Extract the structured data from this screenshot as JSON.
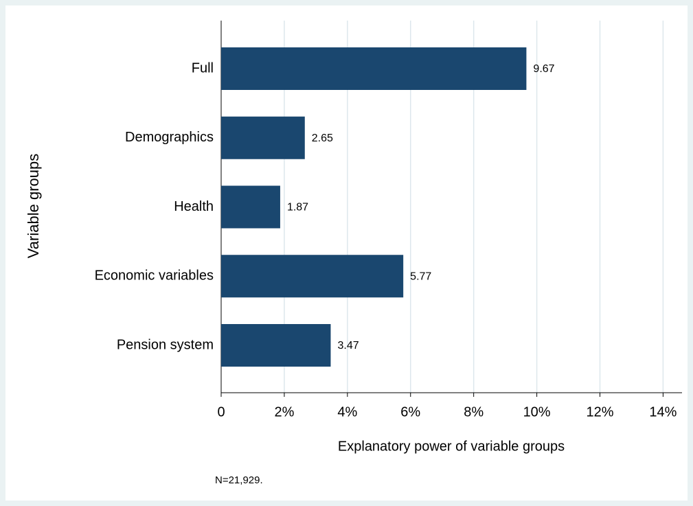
{
  "chart_data": {
    "type": "bar",
    "orientation": "horizontal",
    "x_label": "Explanatory power of variable groups",
    "y_label": "Variable groups",
    "note": "N=21,929.",
    "categories": [
      "Full",
      "Demographics",
      "Health",
      "Economic variables",
      "Pension system"
    ],
    "values": [
      9.67,
      2.65,
      1.87,
      5.77,
      3.47
    ],
    "color": "#1a476f",
    "xlim": [
      0,
      14.6
    ],
    "xticks": [
      0,
      {
        "value": 2,
        "label": "2%"
      },
      {
        "value": 4,
        "label": "4%"
      },
      {
        "value": 6,
        "label": "6%"
      },
      {
        "value": 8,
        "label": "8%"
      },
      {
        "value": 10,
        "label": "10%"
      },
      {
        "value": 12,
        "label": "12%"
      },
      {
        "value": 14,
        "label": "14%"
      }
    ],
    "grid": true
  }
}
